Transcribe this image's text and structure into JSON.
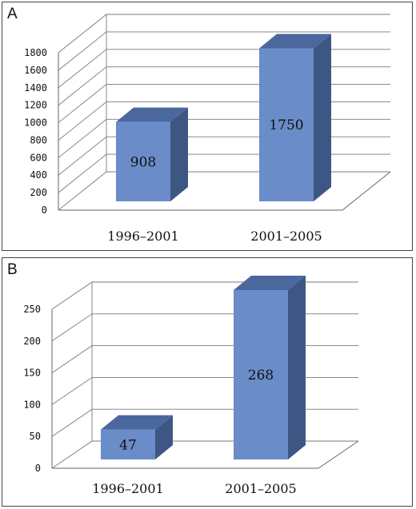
{
  "chart_data": [
    {
      "panel": "A",
      "type": "bar",
      "categories": [
        "1996–2001",
        "2001–2005"
      ],
      "values": [
        908,
        1750
      ],
      "data_labels": [
        "908",
        "1750"
      ],
      "yticks": [
        "0",
        "200",
        "400",
        "600",
        "800",
        "1000",
        "1200",
        "1400",
        "1600",
        "1800"
      ],
      "ylim": [
        0,
        1800
      ],
      "grid": true,
      "style": "3d-column",
      "colors": {
        "front": "#6a8cc8",
        "side": "#3e5684",
        "top": "#4a689e"
      }
    },
    {
      "panel": "B",
      "type": "bar",
      "categories": [
        "1996–2001",
        "2001–2005"
      ],
      "values": [
        47,
        268
      ],
      "data_labels": [
        "47",
        "268"
      ],
      "yticks": [
        "0",
        "50",
        "100",
        "150",
        "200",
        "250"
      ],
      "ylim": [
        0,
        250
      ],
      "grid": true,
      "style": "3d-column",
      "colors": {
        "front": "#6a8cc8",
        "side": "#3e5684",
        "top": "#4a689e"
      }
    }
  ]
}
